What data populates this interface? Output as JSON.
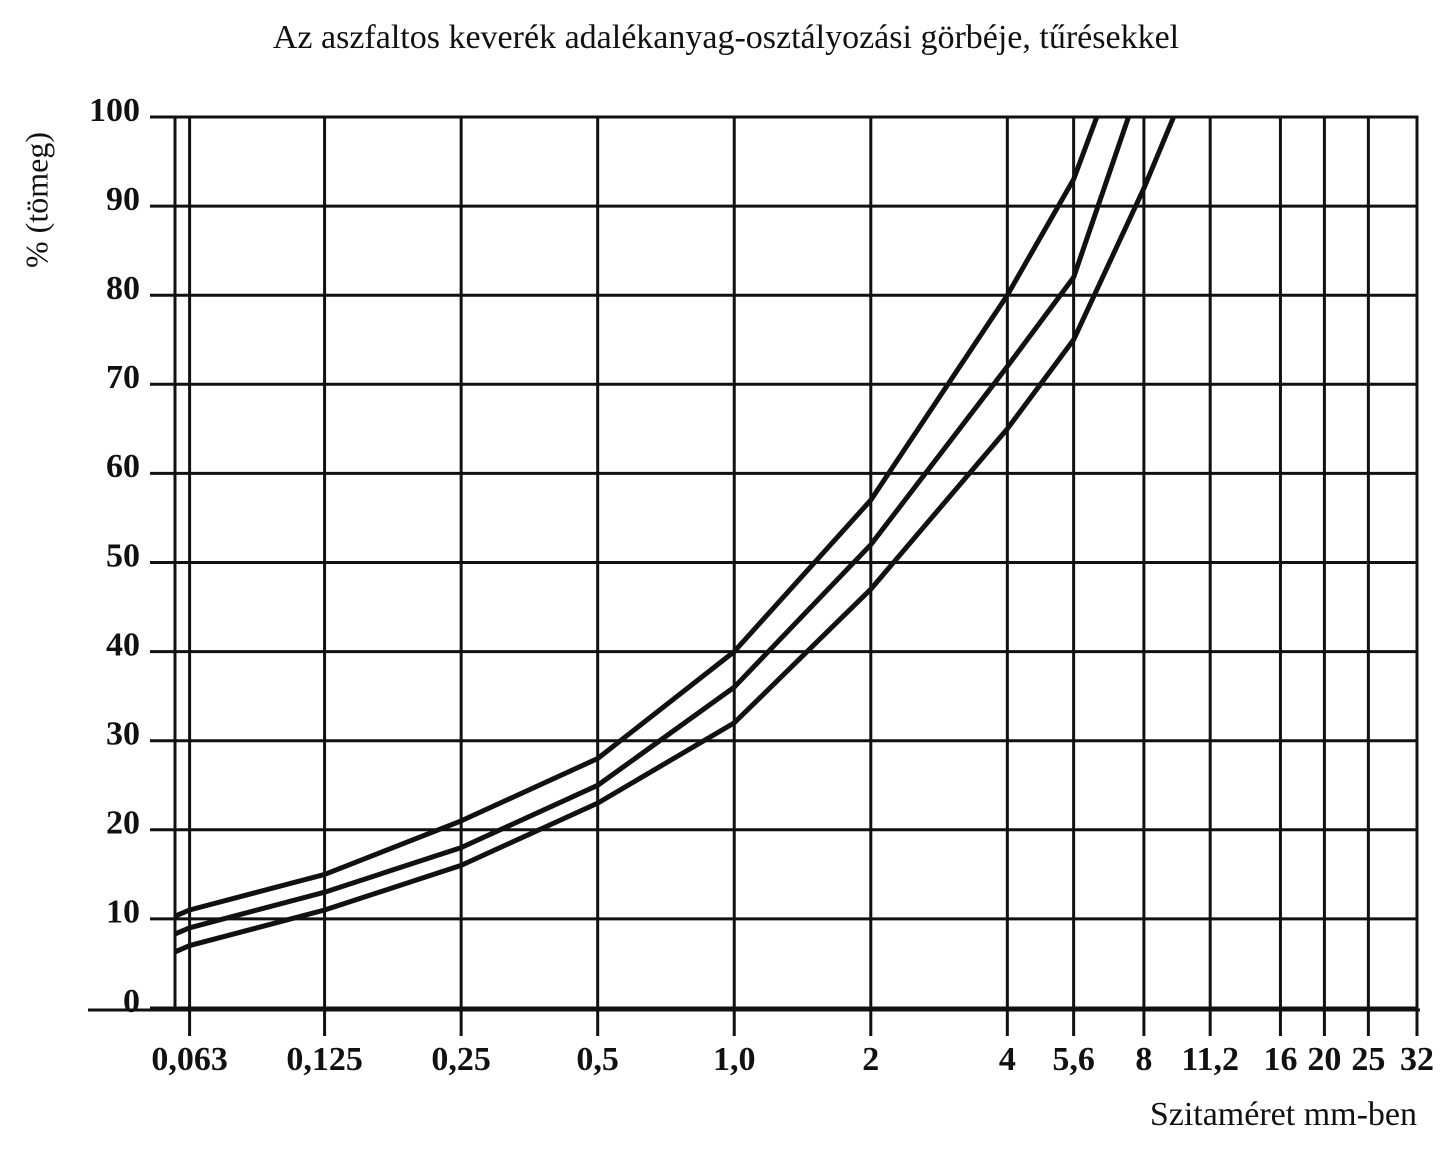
{
  "chart_data": {
    "type": "line",
    "title": "Az aszfaltos keverék adalékanyag-osztályozási görbéje, tűrésekkel",
    "y_label": "% (tömeg)",
    "x_label": "Szitaméret mm-ben",
    "xscale": "log",
    "xlim": [
      0.0585,
      32
    ],
    "ylim": [
      0,
      100
    ],
    "xticks": [
      {
        "value": 0.063,
        "label": "0,063"
      },
      {
        "value": 0.125,
        "label": "0,125"
      },
      {
        "value": 0.25,
        "label": "0,25"
      },
      {
        "value": 0.5,
        "label": "0,5"
      },
      {
        "value": 1,
        "label": "1,0"
      },
      2,
      4,
      {
        "value": 5.6,
        "label": "5,6"
      },
      8,
      {
        "value": 11.2,
        "label": "11,2"
      },
      16,
      20,
      25,
      32
    ],
    "yticks": [
      0,
      10,
      20,
      30,
      40,
      50,
      60,
      70,
      80,
      90,
      100
    ],
    "grid": true,
    "series": [
      {
        "color": "#111111",
        "x": [
          0.0585,
          0.063,
          0.125,
          0.25,
          0.5,
          1,
          2,
          4,
          5.6,
          6.3
        ],
        "values": [
          10.3,
          11,
          15,
          21,
          28,
          40,
          57,
          80,
          93,
          100
        ]
      },
      {
        "color": "#111111",
        "x": [
          0.0585,
          0.063,
          0.125,
          0.25,
          0.5,
          1,
          2,
          4,
          5.6,
          7.4
        ],
        "values": [
          8.3,
          9,
          13,
          18,
          25,
          36,
          52,
          72,
          82,
          100
        ]
      },
      {
        "color": "#111111",
        "x": [
          0.0585,
          0.063,
          0.125,
          0.25,
          0.5,
          1,
          2,
          4,
          5.6,
          8,
          9.3
        ],
        "values": [
          6.3,
          7,
          11,
          16,
          23,
          32,
          47,
          65,
          75,
          92,
          100
        ]
      }
    ]
  }
}
